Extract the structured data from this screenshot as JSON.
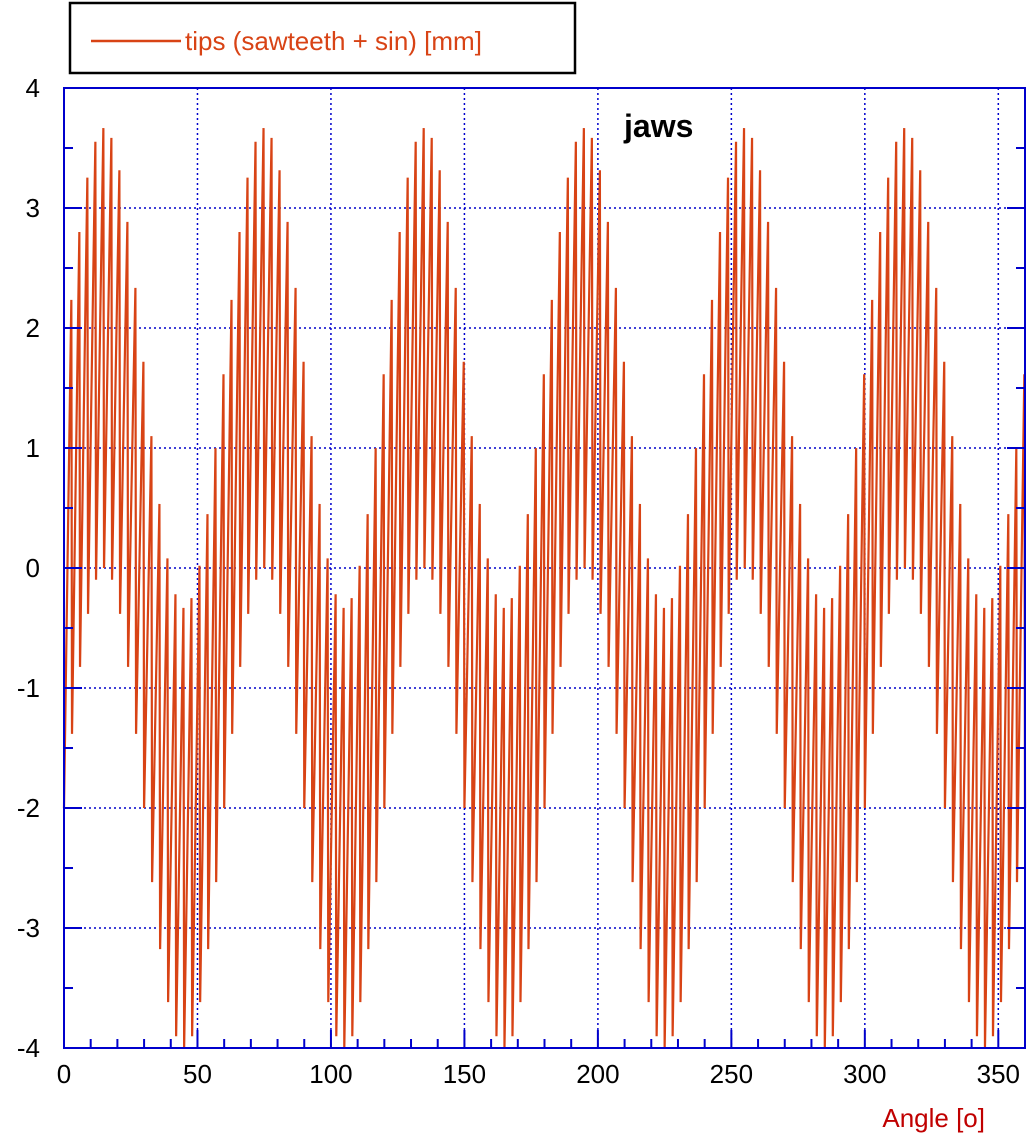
{
  "chart_data": {
    "type": "line",
    "title": "",
    "xlabel": "Angle  [o]",
    "ylabel": "",
    "annotation": "jaws",
    "xlim": [
      0,
      360
    ],
    "ylim": [
      -4,
      4
    ],
    "x_ticks": [
      0,
      50,
      100,
      150,
      200,
      250,
      300,
      350
    ],
    "y_ticks": [
      4,
      3,
      2,
      1,
      0,
      -1,
      -2,
      -3,
      -4
    ],
    "grid": true,
    "legend_position": "top-left",
    "series": [
      {
        "name": "tips (sawteeth + sin) [mm]",
        "color": "#d84315",
        "components": {
          "sin_amplitude": 2.0,
          "sin_period_deg": 60,
          "sin_peak_at_deg": 15,
          "sawtooth_amplitude": 2.0,
          "sawtooth_period_deg": 3
        },
        "x_start": 0,
        "x_end": 360,
        "x_step": 0.25
      }
    ]
  }
}
